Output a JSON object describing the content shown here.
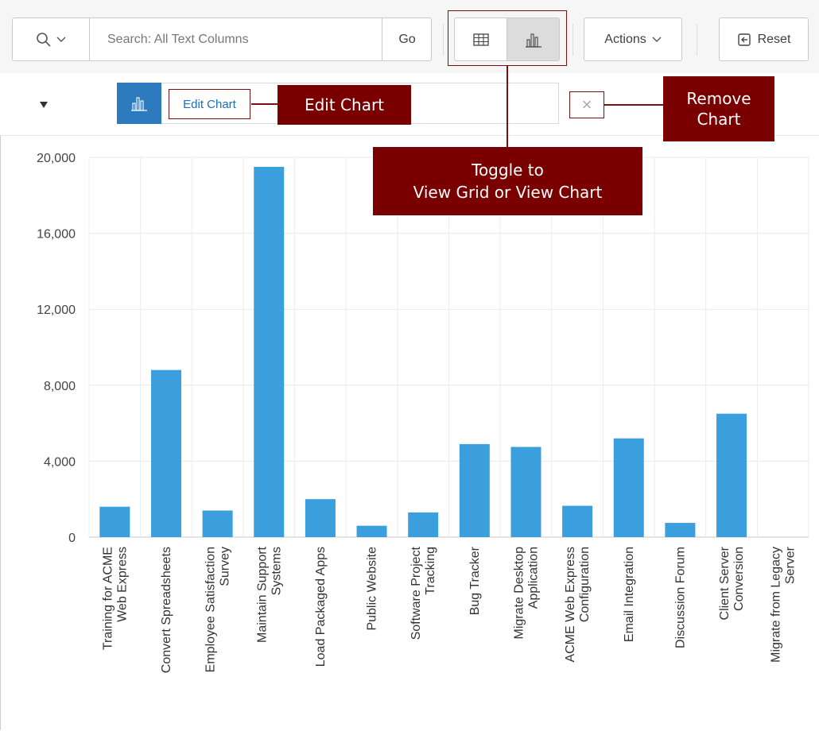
{
  "toolbar": {
    "search_placeholder": "Search: All Text Columns",
    "go_label": "Go",
    "actions_label": "Actions",
    "reset_label": "Reset"
  },
  "chip": {
    "edit_label": "Edit Chart",
    "remove_label": "×"
  },
  "callouts": {
    "edit": "Edit Chart",
    "remove_line1": "Remove",
    "remove_line2": "Chart",
    "toggle_line1": "Toggle to",
    "toggle_line2": "View Grid or View Chart"
  },
  "colors": {
    "bar": "#3a9fdc",
    "callout": "#7a0000",
    "accent": "#2e7abf"
  },
  "chart_data": {
    "type": "bar",
    "ylim": [
      0,
      20000
    ],
    "yticks": [
      0,
      4000,
      8000,
      12000,
      16000,
      20000
    ],
    "ytick_labels": [
      "0",
      "4,000",
      "8,000",
      "12,000",
      "16,000",
      "20,000"
    ],
    "categories": [
      [
        "Training for ACME",
        "Web Express"
      ],
      [
        "Convert Spreadsheets"
      ],
      [
        "Employee Satisfaction",
        "Survey"
      ],
      [
        "Maintain Support",
        "Systems"
      ],
      [
        "Load Packaged Apps"
      ],
      [
        "Public Website"
      ],
      [
        "Software Project",
        "Tracking"
      ],
      [
        "Bug Tracker"
      ],
      [
        "Migrate Desktop",
        "Application"
      ],
      [
        "ACME Web Express",
        "Configuration"
      ],
      [
        "Email Integration"
      ],
      [
        "Discussion Forum"
      ],
      [
        "Client Server",
        "Conversion"
      ],
      [
        "Migrate from Legacy",
        "Server"
      ]
    ],
    "values": [
      1600,
      8800,
      1400,
      19500,
      2000,
      600,
      1300,
      4900,
      4750,
      1650,
      5200,
      750,
      6500,
      0
    ]
  }
}
